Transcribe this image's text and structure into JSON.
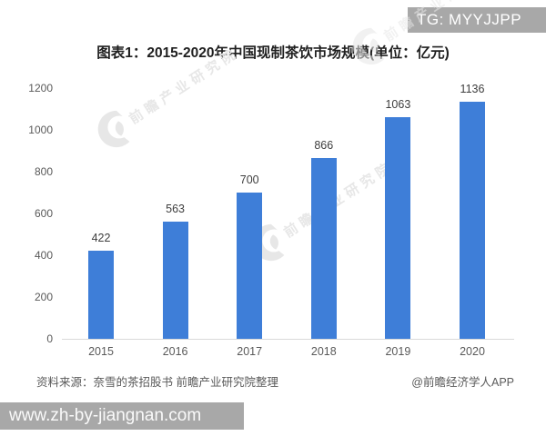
{
  "badge": {
    "label": "TG: MYYJJPP"
  },
  "title": "图表1：2015-2020年中国现制茶饮市场规模(单位：亿元)",
  "chart_data": {
    "type": "bar",
    "title": "图表1：2015-2020年中国现制茶饮市场规模(单位：亿元)",
    "categories": [
      "2015",
      "2016",
      "2017",
      "2018",
      "2019",
      "2020"
    ],
    "values": [
      422,
      563,
      700,
      866,
      1063,
      1136
    ],
    "xlabel": "",
    "ylabel": "",
    "ylim": [
      0,
      1200
    ],
    "yticks": [
      0,
      200,
      400,
      600,
      800,
      1000,
      1200
    ],
    "grid": false,
    "legend_position": "none",
    "bar_color": "#3E7ED8"
  },
  "watermark": {
    "text": "前瞻产业研究院"
  },
  "footer": {
    "source": "资料来源：奈雪的茶招股书 前瞻产业研究院整理",
    "credit": "@前瞻经济学人APP"
  },
  "bottom_bar": {
    "url": "www.zh-by-jiangnan.com"
  },
  "colors": {
    "bar": "#3E7ED8",
    "badge_bg": "#A8A8A8",
    "bottom_bar_bg": "#A8A8A8",
    "title_text": "#1F1F1F",
    "axis_text": "#595959",
    "value_text": "#3D3D3D",
    "footer_text": "#5A5A5A",
    "axis_line": "#D9D9D9",
    "watermark": "#E7E7E7"
  }
}
